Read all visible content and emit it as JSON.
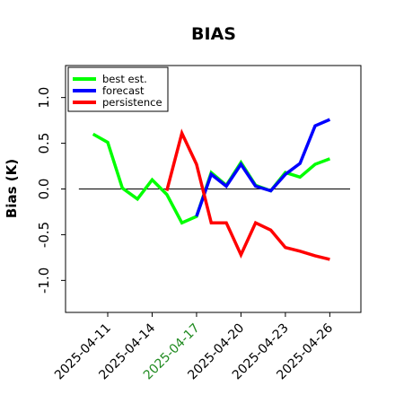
{
  "chart_data": {
    "type": "line",
    "title": "BIAS",
    "xlabel": "",
    "ylabel": "Bias (K)",
    "ylim": [
      -1.35,
      1.35
    ],
    "yticks": [
      -1.0,
      -0.5,
      0.0,
      0.5,
      1.0
    ],
    "ytick_labels": [
      "-1.0",
      "-0.5",
      "0.0",
      "0.5",
      "1.0"
    ],
    "xlim": [
      -0.95,
      5.7
    ],
    "xticks": [
      0,
      1,
      2,
      3,
      4,
      5
    ],
    "xtick_labels": [
      "2025-04-11",
      "2025-04-14",
      "2025-04-17",
      "2025-04-20",
      "2025-04-23",
      "2025-04-26"
    ],
    "xtick_colors": [
      "#000000",
      "#000000",
      "#228b22",
      "#000000",
      "#000000",
      "#000000"
    ],
    "baseline": {
      "y": 0.0,
      "color": "#000000"
    },
    "grid": false,
    "legend": {
      "position": "top-left"
    },
    "series": [
      {
        "name": "best est.",
        "color": "#00ff00",
        "x": [
          -0.33,
          -0.0,
          0.33,
          0.67,
          1.0,
          1.33,
          1.67,
          2.0,
          2.33,
          2.67,
          3.0,
          3.33,
          3.67,
          4.0,
          4.33,
          4.67,
          5.0
        ],
        "y": [
          0.6,
          0.51,
          0.01,
          -0.11,
          0.1,
          -0.06,
          -0.37,
          -0.3,
          0.18,
          0.04,
          0.29,
          0.04,
          -0.02,
          0.18,
          0.13,
          0.27,
          0.33
        ]
      },
      {
        "name": "forecast",
        "color": "#0000ff",
        "x": [
          2.0,
          2.33,
          2.67,
          3.0,
          3.33,
          3.67,
          4.0,
          4.33,
          4.67,
          5.0
        ],
        "y": [
          -0.3,
          0.16,
          0.03,
          0.27,
          0.03,
          -0.02,
          0.16,
          0.28,
          0.69,
          0.76
        ]
      },
      {
        "name": "persistence",
        "color": "#ff0000",
        "x": [
          1.33,
          1.67,
          2.0,
          2.33,
          2.67,
          3.0,
          3.33,
          3.67,
          4.0,
          4.33,
          4.67,
          5.0
        ],
        "y": [
          -0.02,
          0.61,
          0.27,
          -0.37,
          -0.37,
          -0.72,
          -0.37,
          -0.45,
          -0.64,
          -0.68,
          -0.73,
          -0.77
        ]
      }
    ]
  }
}
